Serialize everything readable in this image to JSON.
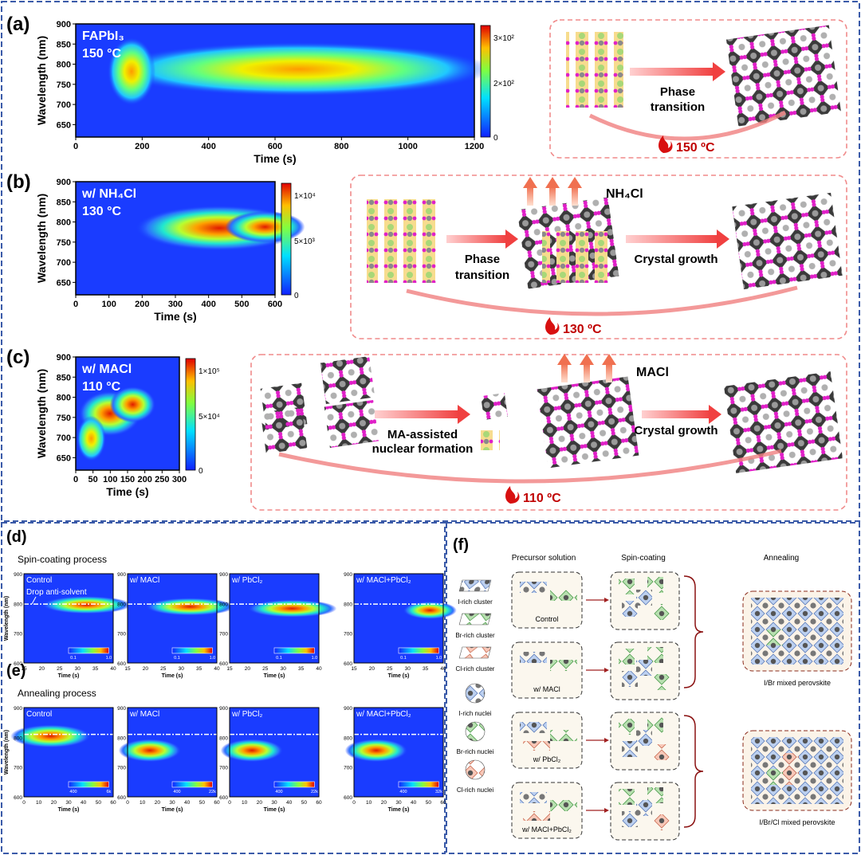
{
  "panels": {
    "a": {
      "label": "(a)",
      "sample": "FAPbI₃",
      "temperature": "150 °C",
      "ylabel": "Wavelength (nm)",
      "xlabel": "Time (s)",
      "xticks": [
        "0",
        "200",
        "400",
        "600",
        "800",
        "1000",
        "1200"
      ],
      "yticks": [
        "900",
        "850",
        "800",
        "750",
        "700",
        "650"
      ],
      "colorbar": [
        "3×10²",
        "2×10²",
        "0"
      ],
      "scheme": {
        "step": [
          "Phase",
          "transition"
        ],
        "temperature": "150 ºC"
      }
    },
    "b": {
      "label": "(b)",
      "sample": "w/ NH₄Cl",
      "temperature": "130 °C",
      "ylabel": "Wavelength (nm)",
      "xlabel": "Time (s)",
      "xticks": [
        "0",
        "100",
        "200",
        "300",
        "400",
        "500",
        "600"
      ],
      "yticks": [
        "900",
        "850",
        "800",
        "750",
        "700",
        "650"
      ],
      "colorbar": [
        "1×10⁴",
        "5×10³",
        "0"
      ],
      "scheme": {
        "additive": "NH₄Cl",
        "step": [
          "Phase",
          "transition"
        ],
        "step2": "Crystal growth",
        "temperature": "130 ºC"
      }
    },
    "c": {
      "label": "(c)",
      "sample": "w/ MACl",
      "temperature": "110 °C",
      "ylabel": "Wavelength (nm)",
      "xlabel": "Time (s)",
      "xticks": [
        "0",
        "50",
        "100",
        "150",
        "200",
        "250",
        "300"
      ],
      "yticks": [
        "900",
        "850",
        "800",
        "750",
        "700",
        "650"
      ],
      "colorbar": [
        "1×10⁵",
        "5×10⁴",
        "0"
      ],
      "scheme": {
        "additive": "MACl",
        "step": [
          "MA-assisted",
          "nuclear formation"
        ],
        "step2": "Crystal growth",
        "temperature": "110 ºC"
      }
    },
    "d": {
      "label": "(d)",
      "title": "Spin-coating process",
      "ylabel": "Wavelength (nm)",
      "xlabel": "Time (s)",
      "annotation": "Drop anti-solvent",
      "xticks": [
        "15",
        "20",
        "25",
        "30",
        "35",
        "40"
      ],
      "yticks": [
        "900",
        "800",
        "700",
        "600"
      ],
      "plots": [
        {
          "name": "Control",
          "colorbar": [
            "0.1",
            "1.0"
          ]
        },
        {
          "name": "w/ MACl",
          "colorbar": [
            "0.1",
            "1.0"
          ]
        },
        {
          "name": "w/ PbCl₂",
          "colorbar": [
            "0.1",
            "1.0"
          ]
        },
        {
          "name": "w/ MACl+PbCl₂",
          "colorbar": [
            "0.1",
            "1.0"
          ]
        }
      ]
    },
    "e": {
      "label": "(e)",
      "title": "Annealing process",
      "ylabel": "Wavelength (nm)",
      "xlabel": "Time (s)",
      "xticks": [
        "0",
        "10",
        "20",
        "30",
        "40",
        "50",
        "60"
      ],
      "yticks": [
        "900",
        "800",
        "700",
        "600"
      ],
      "plots": [
        {
          "name": "Control",
          "colorbar": [
            "400",
            "6k"
          ]
        },
        {
          "name": "w/ MACl",
          "colorbar": [
            "400",
            "22k"
          ]
        },
        {
          "name": "w/ PbCl₂",
          "colorbar": [
            "400",
            "22k"
          ]
        },
        {
          "name": "w/ MACl+PbCl₂",
          "colorbar": [
            "400",
            "32k"
          ]
        }
      ]
    },
    "f": {
      "label": "(f)",
      "headers": [
        "Precursor solution",
        "Spin-coating",
        "Annealing"
      ],
      "legend": [
        "I-rich cluster",
        "Br-rich cluster",
        "Cl-rich cluster",
        "I-rich nuclei",
        "Br-rich nuclei",
        "Cl-rich nuclei"
      ],
      "conditions": [
        "Control",
        "w/ MACl",
        "w/ PbCl₂",
        "w/ MACl+PbCl₂"
      ],
      "products": [
        "I/Br mixed perovskite",
        "I/Br/Cl mixed perovskite"
      ]
    }
  }
}
